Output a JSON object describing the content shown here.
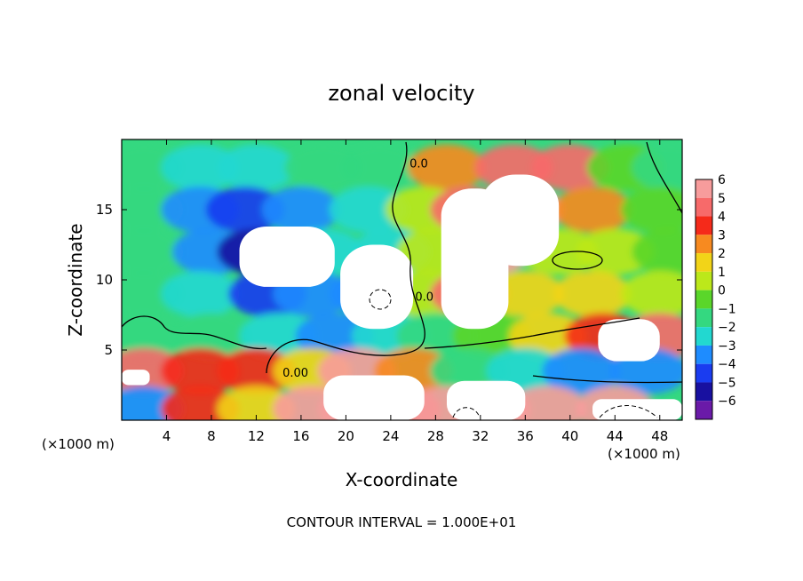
{
  "chart_data": {
    "type": "heatmap",
    "title": "zonal velocity",
    "xlabel": "X-coordinate",
    "ylabel": "Z-coordinate",
    "x_unit_left": "(×1000 m)",
    "x_unit_right": "(×1000 m)",
    "footer": "CONTOUR INTERVAL = 1.000E+01",
    "xlim": [
      0,
      50
    ],
    "ylim": [
      0,
      20
    ],
    "x_ticks": [
      4,
      8,
      12,
      16,
      20,
      24,
      28,
      32,
      36,
      40,
      44,
      48
    ],
    "y_ticks": [
      5,
      10,
      15
    ],
    "contour_labels": [
      {
        "text": "0.00",
        "x": 15.5,
        "y": 3.1
      },
      {
        "text": "0.0",
        "x": 27.0,
        "y": 8.5
      },
      {
        "text": "0.0",
        "x": 26.5,
        "y": 18.0
      }
    ],
    "colorbar": {
      "levels": [
        "6",
        "5",
        "4",
        "3",
        "2",
        "1",
        "0",
        "−1",
        "−2",
        "−3",
        "−4",
        "−5",
        "−6"
      ],
      "values": [
        6,
        5,
        4,
        3,
        2,
        1,
        0,
        -1,
        -2,
        -3,
        -4,
        -5,
        -6
      ],
      "colors": [
        "#f79c9c",
        "#f76a6a",
        "#f52a1a",
        "#f78a20",
        "#f2d418",
        "#bce81a",
        "#5ad62a",
        "#34d880",
        "#22d8d0",
        "#1e8cff",
        "#1a3cf0",
        "#1810a0",
        "#6a1aa8"
      ]
    },
    "field_points": [
      {
        "x": 2,
        "y": 18,
        "v": -1.5
      },
      {
        "x": 7,
        "y": 18,
        "v": -1.8
      },
      {
        "x": 12,
        "y": 18,
        "v": -1.8
      },
      {
        "x": 18,
        "y": 18,
        "v": -1.2
      },
      {
        "x": 23,
        "y": 18,
        "v": -0.6
      },
      {
        "x": 29,
        "y": 18,
        "v": 2.5
      },
      {
        "x": 35,
        "y": 18,
        "v": 4.8
      },
      {
        "x": 40,
        "y": 18,
        "v": 4.5
      },
      {
        "x": 45,
        "y": 18,
        "v": 0.2
      },
      {
        "x": 49,
        "y": 18,
        "v": -0.8
      },
      {
        "x": 2,
        "y": 15,
        "v": -1.2
      },
      {
        "x": 7,
        "y": 15,
        "v": -2.6
      },
      {
        "x": 11,
        "y": 15,
        "v": -4.4
      },
      {
        "x": 16,
        "y": 15,
        "v": -3.0
      },
      {
        "x": 22,
        "y": 15,
        "v": -2.4
      },
      {
        "x": 27,
        "y": 15,
        "v": 0.6
      },
      {
        "x": 31,
        "y": 15,
        "v": 4.5
      },
      {
        "x": 36,
        "y": 15,
        "v": 6.5
      },
      {
        "x": 42,
        "y": 15,
        "v": 2.6
      },
      {
        "x": 48,
        "y": 15,
        "v": 0.4
      },
      {
        "x": 2,
        "y": 12,
        "v": -1.0
      },
      {
        "x": 8,
        "y": 12,
        "v": -2.6
      },
      {
        "x": 12,
        "y": 12,
        "v": -4.8
      },
      {
        "x": 18,
        "y": 12,
        "v": -2.4
      },
      {
        "x": 24,
        "y": 12,
        "v": -1.6
      },
      {
        "x": 28,
        "y": 12,
        "v": 1.4
      },
      {
        "x": 33,
        "y": 12,
        "v": 5.5
      },
      {
        "x": 39,
        "y": 12,
        "v": 1.2
      },
      {
        "x": 44,
        "y": 12,
        "v": 0.6
      },
      {
        "x": 49,
        "y": 12,
        "v": 0.3
      },
      {
        "x": 2,
        "y": 9,
        "v": -1.1
      },
      {
        "x": 7,
        "y": 9,
        "v": -2.0
      },
      {
        "x": 13,
        "y": 9,
        "v": -4.0
      },
      {
        "x": 17,
        "y": 9,
        "v": -3.2
      },
      {
        "x": 22,
        "y": 9,
        "v": -2.8
      },
      {
        "x": 27,
        "y": 9,
        "v": 0.8
      },
      {
        "x": 31,
        "y": 9,
        "v": 5.0
      },
      {
        "x": 36,
        "y": 9,
        "v": 1.5
      },
      {
        "x": 42,
        "y": 9,
        "v": 1.8
      },
      {
        "x": 48,
        "y": 9,
        "v": 0.6
      },
      {
        "x": 2,
        "y": 6,
        "v": -0.8
      },
      {
        "x": 8,
        "y": 6,
        "v": -1.4
      },
      {
        "x": 14,
        "y": 6,
        "v": -2.0
      },
      {
        "x": 19,
        "y": 6,
        "v": -3.5
      },
      {
        "x": 24,
        "y": 6,
        "v": -1.6
      },
      {
        "x": 28,
        "y": 6,
        "v": -0.6
      },
      {
        "x": 33,
        "y": 6,
        "v": 0.4
      },
      {
        "x": 38,
        "y": 6,
        "v": 1.6
      },
      {
        "x": 43,
        "y": 6,
        "v": 3.8
      },
      {
        "x": 48,
        "y": 6,
        "v": 5.0
      },
      {
        "x": 2,
        "y": 3.5,
        "v": 4.6
      },
      {
        "x": 7,
        "y": 3.5,
        "v": 4.2
      },
      {
        "x": 12,
        "y": 3.5,
        "v": 3.6
      },
      {
        "x": 17,
        "y": 3.5,
        "v": 1.6
      },
      {
        "x": 21,
        "y": 3.5,
        "v": 5.5
      },
      {
        "x": 26,
        "y": 3.5,
        "v": 3.0
      },
      {
        "x": 31,
        "y": 3.5,
        "v": -1.5
      },
      {
        "x": 36,
        "y": 3.5,
        "v": -2.2
      },
      {
        "x": 41,
        "y": 3.5,
        "v": -2.8
      },
      {
        "x": 47,
        "y": 3.5,
        "v": -3.2
      },
      {
        "x": 2,
        "y": 0.8,
        "v": -3.2
      },
      {
        "x": 7,
        "y": 0.8,
        "v": 3.8
      },
      {
        "x": 12,
        "y": 0.8,
        "v": 2.4
      },
      {
        "x": 17,
        "y": 0.8,
        "v": 6.4
      },
      {
        "x": 21,
        "y": 0.8,
        "v": 6.5
      },
      {
        "x": 25,
        "y": 0.8,
        "v": 5.0
      },
      {
        "x": 29,
        "y": 0.8,
        "v": 6.2
      },
      {
        "x": 33,
        "y": 0.8,
        "v": 6.4
      },
      {
        "x": 38,
        "y": 0.8,
        "v": 6.2
      },
      {
        "x": 44,
        "y": 0.8,
        "v": 6.3
      }
    ],
    "saturated_regions": [
      {
        "x": [
          10.5,
          19
        ],
        "y": [
          9.5,
          13.8
        ]
      },
      {
        "x": [
          19.5,
          26
        ],
        "y": [
          6.5,
          12.5
        ]
      },
      {
        "x": [
          28.5,
          34.5
        ],
        "y": [
          6.5,
          16.5
        ]
      },
      {
        "x": [
          32,
          39
        ],
        "y": [
          11,
          17.5
        ]
      },
      {
        "x": [
          42.5,
          48
        ],
        "y": [
          4.2,
          7.2
        ]
      },
      {
        "x": [
          18,
          27
        ],
        "y": [
          0,
          3.2
        ]
      },
      {
        "x": [
          29,
          36
        ],
        "y": [
          0,
          2.8
        ]
      },
      {
        "x": [
          42,
          50
        ],
        "y": [
          0,
          1.5
        ]
      },
      {
        "x": [
          0,
          2.5
        ],
        "y": [
          2.5,
          3.6
        ]
      }
    ]
  }
}
